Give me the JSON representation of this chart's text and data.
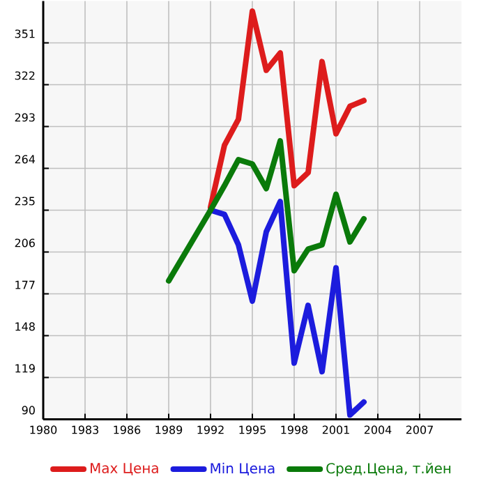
{
  "chart_data": {
    "type": "line",
    "x": [
      1989,
      1992,
      1993,
      1994,
      1995,
      1996,
      1997,
      1998,
      1999,
      2000,
      2001,
      2002,
      2003
    ],
    "series": [
      {
        "name": "Max Цена",
        "color": "#dd1c1c",
        "values": [
          null,
          237,
          280,
          298,
          373,
          332,
          344,
          252,
          261,
          338,
          288,
          307,
          311
        ]
      },
      {
        "name": "Min Цена",
        "color": "#1c1cdd",
        "values": [
          null,
          235,
          232,
          211,
          172,
          220,
          241,
          129,
          169,
          123,
          195,
          93,
          102
        ]
      },
      {
        "name": "Сред.Цена, т.йен",
        "color": "#0a7a0a",
        "values": [
          186,
          235,
          252,
          270,
          267,
          250,
          283,
          193,
          208,
          211,
          246,
          213,
          229
        ]
      }
    ],
    "xlim": [
      1980,
      2010
    ],
    "xticks": [
      1980,
      1983,
      1986,
      1989,
      1992,
      1995,
      1998,
      2001,
      2004,
      2007
    ],
    "ylim": [
      90,
      380
    ],
    "yticks": [
      90,
      119,
      148,
      177,
      206,
      235,
      264,
      293,
      322,
      351
    ],
    "grid": true,
    "legend": "bottom",
    "marker": "none",
    "line_style": "solid"
  }
}
